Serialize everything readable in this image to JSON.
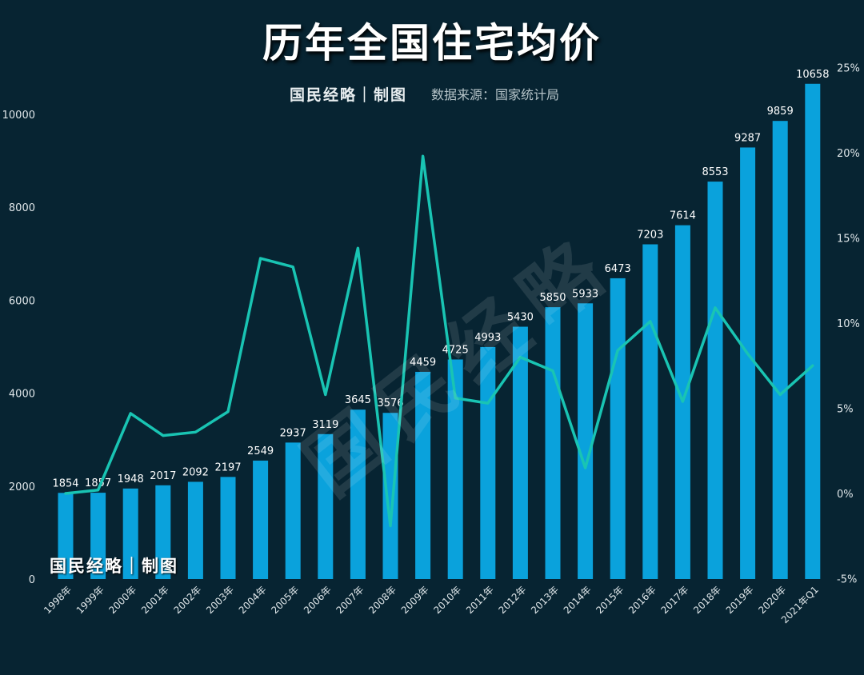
{
  "header": {
    "title": "历年全国住宅均价",
    "brand": "国民经略｜制图",
    "source": "数据来源：国家统计局"
  },
  "watermarks": {
    "bottom_left": "国民经略｜制图",
    "diagonal": "国民经略"
  },
  "colors": {
    "background": "#072432",
    "bar": "#0aa2dc",
    "line": "#19c4b3",
    "text": "#dfe6e9"
  },
  "chart_data": {
    "type": "bar",
    "categories": [
      "1998年",
      "1999年",
      "2000年",
      "2001年",
      "2002年",
      "2003年",
      "2004年",
      "2005年",
      "2006年",
      "2007年",
      "2008年",
      "2009年",
      "2010年",
      "2011年",
      "2012年",
      "2013年",
      "2014年",
      "2015年",
      "2016年",
      "2017年",
      "2018年",
      "2019年",
      "2020年",
      "2021年Q1"
    ],
    "series": [
      {
        "type": "bar",
        "axis": "left",
        "values": [
          1854,
          1857,
          1948,
          2017,
          2092,
          2197,
          2549,
          2937,
          3119,
          3645,
          3576,
          4459,
          4725,
          4993,
          5430,
          5850,
          5933,
          6473,
          7203,
          7614,
          8553,
          9287,
          9859,
          10658
        ]
      },
      {
        "type": "line",
        "axis": "right",
        "values": [
          0.0,
          0.2,
          4.7,
          3.4,
          3.6,
          4.8,
          13.8,
          13.3,
          5.8,
          14.4,
          -1.9,
          19.8,
          5.6,
          5.3,
          8.0,
          7.2,
          1.5,
          8.4,
          10.1,
          5.4,
          10.9,
          8.2,
          5.8,
          7.5
        ]
      }
    ],
    "y_left": {
      "min": 0,
      "max": 10000,
      "ticks": [
        "0",
        "2000",
        "4000",
        "6000",
        "8000",
        "10000"
      ]
    },
    "y_right": {
      "min": -5,
      "max": 25,
      "ticks": [
        "-5%",
        "0%",
        "5%",
        "10%",
        "15%",
        "20%",
        "25%"
      ]
    },
    "grid": false,
    "legend": "none"
  }
}
